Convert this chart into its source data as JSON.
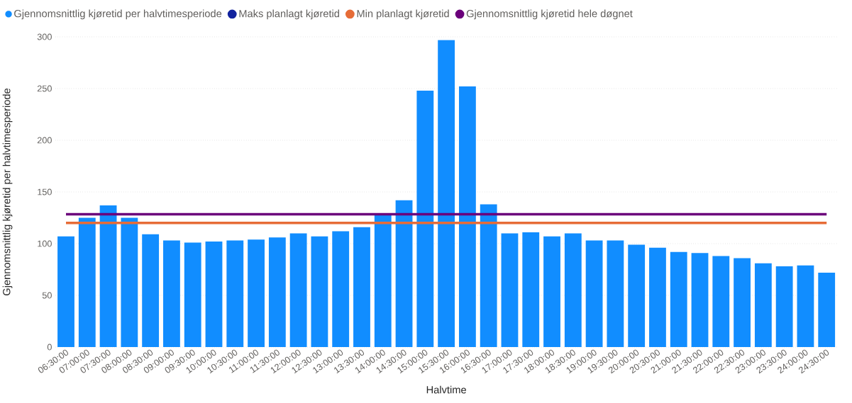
{
  "chart_data": {
    "type": "bar",
    "xlabel": "Halvtime",
    "ylabel": "Gjennomsnittlig kjøretid per halvtimesperiode",
    "categories": [
      "06:30:00",
      "07:00:00",
      "07:30:00",
      "08:00:00",
      "08:30:00",
      "09:00:00",
      "09:30:00",
      "10:00:00",
      "10:30:00",
      "11:00:00",
      "11:30:00",
      "12:00:00",
      "12:30:00",
      "13:00:00",
      "13:30:00",
      "14:00:00",
      "14:30:00",
      "15:00:00",
      "15:30:00",
      "16:00:00",
      "16:30:00",
      "17:00:00",
      "17:30:00",
      "18:00:00",
      "18:30:00",
      "19:00:00",
      "19:30:00",
      "20:00:00",
      "20:30:00",
      "21:00:00",
      "21:30:00",
      "22:00:00",
      "22:30:00",
      "23:00:00",
      "23:30:00",
      "24:00:00",
      "24:30:00"
    ],
    "series": [
      {
        "name": "Gjennomsnittlig kjøretid per halvtimesperiode",
        "color": "#118dff",
        "values": [
          107,
          125,
          137,
          125,
          109,
          103,
          101,
          102,
          103,
          104,
          106,
          110,
          107,
          112,
          116,
          128,
          142,
          248,
          297,
          252,
          138,
          110,
          111,
          107,
          110,
          103,
          103,
          99,
          96,
          92,
          91,
          88,
          86,
          81,
          78,
          79,
          72
        ]
      },
      {
        "name": "Maks planlagt kjøretid",
        "type": "line",
        "color": "#12239e",
        "values": [
          null,
          null,
          null,
          null,
          null,
          null,
          null,
          null,
          null,
          null,
          null,
          null,
          null,
          null,
          null,
          null,
          null,
          null,
          null,
          null,
          null,
          null,
          null,
          null,
          null,
          null,
          null,
          null,
          null,
          null,
          null,
          null,
          null,
          null,
          null,
          null,
          null
        ]
      },
      {
        "name": "Min planlagt kjøretid",
        "type": "line",
        "color": "#e66c37",
        "values": [
          120,
          120,
          120,
          120,
          120,
          120,
          120,
          120,
          120,
          120,
          120,
          120,
          120,
          120,
          120,
          120,
          120,
          120,
          120,
          120,
          120,
          120,
          120,
          120,
          120,
          120,
          120,
          120,
          120,
          120,
          120,
          120,
          120,
          120,
          120,
          120,
          120
        ]
      },
      {
        "name": "Gjennomsnittlig kjøretid hele døgnet",
        "type": "line",
        "color": "#6b007b",
        "values": [
          128.5,
          128.5,
          128.5,
          128.5,
          128.5,
          128.5,
          128.5,
          128.5,
          128.5,
          128.5,
          128.5,
          128.5,
          128.5,
          128.5,
          128.5,
          128.5,
          128.5,
          128.5,
          128.5,
          128.5,
          128.5,
          128.5,
          128.5,
          128.5,
          128.5,
          128.5,
          128.5,
          128.5,
          128.5,
          128.5,
          128.5,
          128.5,
          128.5,
          128.5,
          128.5,
          128.5,
          128.5
        ]
      }
    ],
    "ylim": [
      0,
      300
    ],
    "yticks": [
      0,
      50,
      100,
      150,
      200,
      250,
      300
    ],
    "grid": "y",
    "legend": "top left",
    "marker": "none",
    "line_style": "solid"
  }
}
